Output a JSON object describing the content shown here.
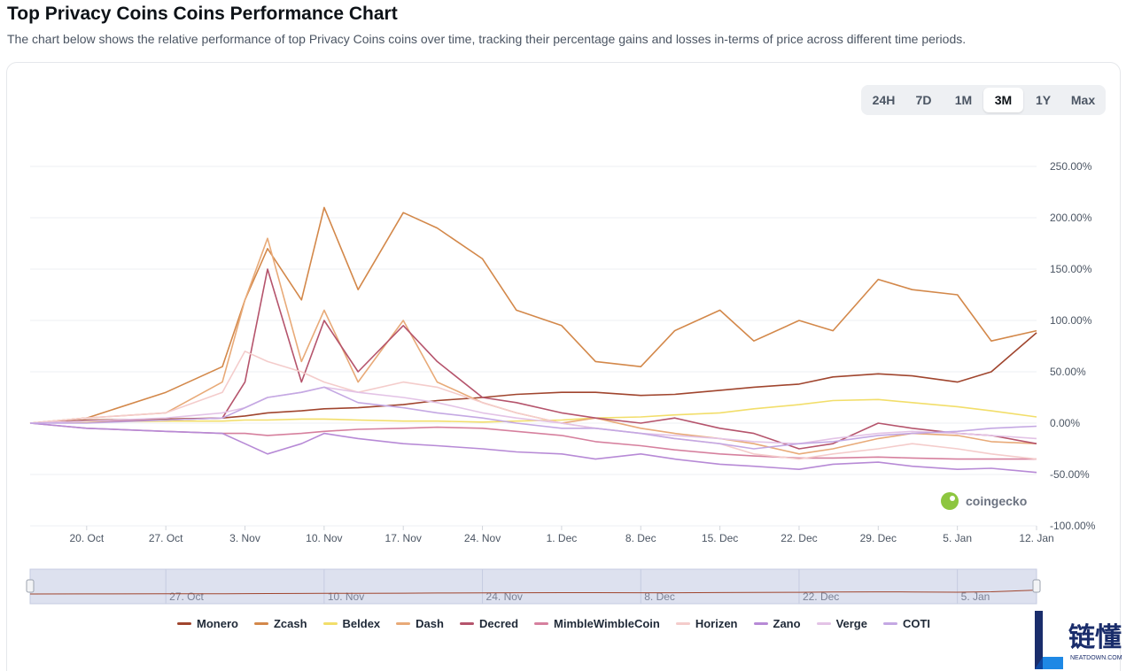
{
  "header": {
    "title": "Top Privacy Coins Coins Performance Chart",
    "subtitle": "The chart below shows the relative performance of top Privacy Coins coins over time, tracking their percentage gains and losses in-terms of price across different time periods."
  },
  "range_buttons": [
    {
      "label": "24H",
      "active": false
    },
    {
      "label": "7D",
      "active": false
    },
    {
      "label": "1M",
      "active": false
    },
    {
      "label": "3M",
      "active": true
    },
    {
      "label": "1Y",
      "active": false
    },
    {
      "label": "Max",
      "active": false
    }
  ],
  "watermark": {
    "text": "coingecko"
  },
  "brand": {
    "name": "链懂",
    "sub": "NEATDOWN.COM"
  },
  "chart_data": {
    "type": "line",
    "title": "",
    "xlabel": "",
    "ylabel": "",
    "grid": true,
    "legend_position": "bottom",
    "ylim": [
      -100,
      250
    ],
    "xlim": [
      "2024-10-15",
      "2025-01-12"
    ],
    "y_ticks": [
      "250.00%",
      "200.00%",
      "150.00%",
      "100.00%",
      "50.00%",
      "0.00%",
      "-50.00%",
      "-100.00%"
    ],
    "y_tick_values": [
      250,
      200,
      150,
      100,
      50,
      0,
      -50,
      -100
    ],
    "x_ticks": [
      "20. Oct",
      "27. Oct",
      "3. Nov",
      "10. Nov",
      "17. Nov",
      "24. Nov",
      "1. Dec",
      "8. Dec",
      "15. Dec",
      "22. Dec",
      "29. Dec",
      "5. Jan",
      "12. Jan"
    ],
    "x_tick_dates": [
      "2024-10-20",
      "2024-10-27",
      "2024-11-03",
      "2024-11-10",
      "2024-11-17",
      "2024-11-24",
      "2024-12-01",
      "2024-12-08",
      "2024-12-15",
      "2024-12-22",
      "2024-12-29",
      "2025-01-05",
      "2025-01-12"
    ],
    "navigator_ticks": [
      "27. Oct",
      "10. Nov",
      "24. Nov",
      "8. Dec",
      "22. Dec",
      "5. Jan"
    ],
    "navigator_tick_dates": [
      "2024-10-27",
      "2024-11-10",
      "2024-11-24",
      "2024-12-08",
      "2024-12-22",
      "2025-01-05"
    ],
    "x": [
      "2024-10-15",
      "2024-10-20",
      "2024-10-27",
      "2024-11-01",
      "2024-11-03",
      "2024-11-05",
      "2024-11-08",
      "2024-11-10",
      "2024-11-13",
      "2024-11-17",
      "2024-11-20",
      "2024-11-24",
      "2024-11-27",
      "2024-12-01",
      "2024-12-04",
      "2024-12-08",
      "2024-12-11",
      "2024-12-15",
      "2024-12-18",
      "2024-12-22",
      "2024-12-25",
      "2024-12-29",
      "2025-01-01",
      "2025-01-05",
      "2025-01-08",
      "2025-01-12"
    ],
    "series": [
      {
        "name": "Monero",
        "color": "#a0452e",
        "values": [
          0,
          3,
          4,
          5,
          7,
          10,
          12,
          14,
          15,
          18,
          22,
          25,
          28,
          30,
          30,
          27,
          28,
          32,
          35,
          38,
          45,
          48,
          46,
          40,
          50,
          88
        ]
      },
      {
        "name": "Zcash",
        "color": "#d3884a",
        "values": [
          0,
          5,
          30,
          55,
          120,
          170,
          120,
          210,
          130,
          205,
          190,
          160,
          110,
          95,
          60,
          55,
          90,
          110,
          80,
          100,
          90,
          140,
          130,
          125,
          80,
          90
        ]
      },
      {
        "name": "Beldex",
        "color": "#f2de6a",
        "values": [
          0,
          1,
          2,
          2,
          3,
          3,
          4,
          4,
          3,
          2,
          2,
          1,
          2,
          3,
          5,
          6,
          8,
          10,
          14,
          18,
          22,
          23,
          20,
          16,
          12,
          6
        ]
      },
      {
        "name": "Dash",
        "color": "#e8aa78",
        "values": [
          0,
          5,
          10,
          40,
          120,
          180,
          60,
          110,
          40,
          100,
          40,
          20,
          10,
          0,
          5,
          -5,
          -10,
          -15,
          -20,
          -30,
          -25,
          -15,
          -10,
          -12,
          -18,
          -20
        ]
      },
      {
        "name": "Decred",
        "color": "#b5546c",
        "values": [
          0,
          2,
          3,
          5,
          40,
          150,
          40,
          100,
          50,
          95,
          60,
          25,
          20,
          10,
          5,
          0,
          5,
          -5,
          -10,
          -25,
          -20,
          0,
          -5,
          -10,
          -12,
          -20
        ]
      },
      {
        "name": "MimbleWimbleCoin",
        "color": "#d6809e",
        "values": [
          0,
          -5,
          -8,
          -10,
          -10,
          -12,
          -10,
          -8,
          -6,
          -5,
          -4,
          -5,
          -8,
          -12,
          -18,
          -22,
          -26,
          -30,
          -32,
          -34,
          -34,
          -33,
          -34,
          -35,
          -35,
          -35
        ]
      },
      {
        "name": "Horizen",
        "color": "#f4cccb",
        "values": [
          0,
          5,
          10,
          30,
          70,
          60,
          50,
          40,
          30,
          40,
          35,
          20,
          10,
          0,
          -5,
          -10,
          -15,
          -20,
          -30,
          -35,
          -30,
          -25,
          -20,
          -25,
          -30,
          -35
        ]
      },
      {
        "name": "Zano",
        "color": "#b78ad6",
        "values": [
          0,
          -5,
          -8,
          -10,
          -20,
          -30,
          -20,
          -10,
          -15,
          -20,
          -22,
          -25,
          -28,
          -30,
          -35,
          -30,
          -35,
          -40,
          -42,
          -45,
          -40,
          -38,
          -42,
          -45,
          -44,
          -48
        ]
      },
      {
        "name": "Verge",
        "color": "#e3c3e6",
        "values": [
          0,
          2,
          5,
          10,
          15,
          25,
          30,
          35,
          30,
          25,
          20,
          10,
          5,
          0,
          -5,
          -10,
          -12,
          -15,
          -18,
          -20,
          -15,
          -10,
          -8,
          -10,
          -12,
          -15
        ]
      },
      {
        "name": "COTI",
        "color": "#c4a8e3",
        "values": [
          0,
          0,
          3,
          5,
          15,
          25,
          30,
          35,
          20,
          15,
          10,
          5,
          0,
          -5,
          -5,
          -10,
          -15,
          -20,
          -25,
          -20,
          -18,
          -12,
          -10,
          -8,
          -5,
          -3
        ]
      }
    ]
  }
}
